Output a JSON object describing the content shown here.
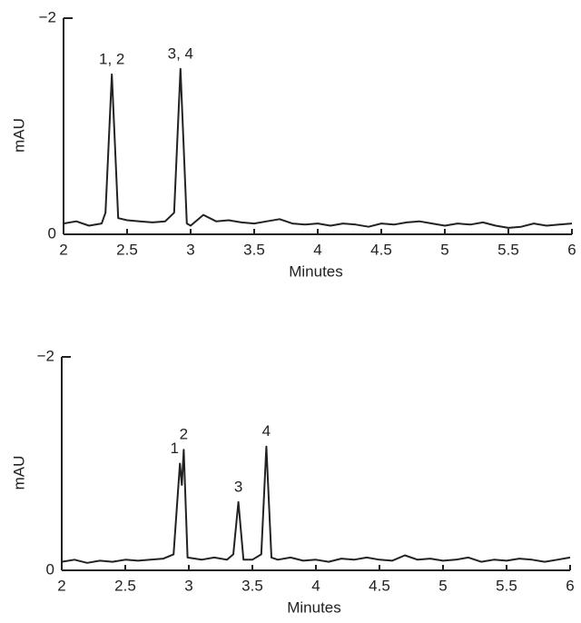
{
  "chart_data": [
    {
      "type": "line",
      "x_label": "Minutes",
      "y_label": "mAU",
      "x": [
        2.0,
        2.1,
        2.2,
        2.3,
        2.33,
        2.38,
        2.43,
        2.5,
        2.6,
        2.7,
        2.8,
        2.87,
        2.92,
        2.97,
        3.0,
        3.1,
        3.2,
        3.3,
        3.4,
        3.5,
        3.6,
        3.7,
        3.8,
        3.9,
        4.0,
        4.1,
        4.2,
        4.3,
        4.4,
        4.5,
        4.6,
        4.7,
        4.8,
        4.9,
        5.0,
        5.1,
        5.2,
        5.3,
        5.4,
        5.5,
        5.6,
        5.7,
        5.8,
        5.9,
        6.0
      ],
      "values": [
        -0.1,
        -0.12,
        -0.08,
        -0.1,
        -0.2,
        -1.48,
        -0.15,
        -0.13,
        -0.12,
        -0.11,
        -0.12,
        -0.2,
        -1.53,
        -0.1,
        -0.08,
        -0.18,
        -0.12,
        -0.13,
        -0.11,
        -0.1,
        -0.12,
        -0.14,
        -0.1,
        -0.09,
        -0.1,
        -0.08,
        -0.1,
        -0.09,
        -0.07,
        -0.1,
        -0.09,
        -0.11,
        -0.12,
        -0.1,
        -0.08,
        -0.1,
        -0.09,
        -0.11,
        -0.08,
        -0.06,
        -0.07,
        -0.1,
        -0.08,
        -0.09,
        -0.1
      ],
      "color": "#222222",
      "xlim": [
        2,
        6
      ],
      "xticks": [
        2,
        2.5,
        3,
        3.5,
        4,
        4.5,
        5,
        5.5,
        6
      ],
      "ylim": [
        0,
        -2
      ],
      "yticks": [
        0,
        {
          "value": -2,
          "label": "−2"
        }
      ],
      "annotations": [
        {
          "text": "1, 2",
          "x": 2.38
        },
        {
          "text": "3, 4",
          "x": 2.92
        }
      ]
    },
    {
      "type": "line",
      "x_label": "Minutes",
      "y_label": "mAU",
      "x": [
        2.0,
        2.1,
        2.2,
        2.3,
        2.4,
        2.5,
        2.6,
        2.7,
        2.8,
        2.88,
        2.93,
        2.945,
        2.96,
        2.99,
        3.1,
        3.2,
        3.3,
        3.35,
        3.39,
        3.43,
        3.5,
        3.57,
        3.61,
        3.65,
        3.7,
        3.8,
        3.9,
        4.0,
        4.1,
        4.2,
        4.3,
        4.4,
        4.5,
        4.6,
        4.7,
        4.8,
        4.9,
        5.0,
        5.1,
        5.2,
        5.3,
        5.4,
        5.5,
        5.6,
        5.7,
        5.8,
        5.9,
        6.0
      ],
      "values": [
        -0.08,
        -0.1,
        -0.07,
        -0.09,
        -0.08,
        -0.1,
        -0.09,
        -0.1,
        -0.11,
        -0.15,
        -1.0,
        -0.8,
        -1.13,
        -0.12,
        -0.1,
        -0.12,
        -0.1,
        -0.15,
        -0.64,
        -0.1,
        -0.1,
        -0.15,
        -1.16,
        -0.12,
        -0.1,
        -0.12,
        -0.09,
        -0.1,
        -0.08,
        -0.11,
        -0.1,
        -0.12,
        -0.1,
        -0.09,
        -0.14,
        -0.1,
        -0.11,
        -0.09,
        -0.1,
        -0.12,
        -0.08,
        -0.1,
        -0.09,
        -0.11,
        -0.1,
        -0.08,
        -0.1,
        -0.12
      ],
      "color": "#222222",
      "xlim": [
        2,
        6
      ],
      "xticks": [
        2,
        2.5,
        3,
        3.5,
        4,
        4.5,
        5,
        5.5,
        6
      ],
      "ylim": [
        0,
        -2
      ],
      "yticks": [
        0,
        {
          "value": -2,
          "label": "−2"
        }
      ],
      "annotations": [
        {
          "text": "1",
          "x": 2.93
        },
        {
          "text": "2",
          "x": 2.96
        },
        {
          "text": "3",
          "x": 3.39
        },
        {
          "text": "4",
          "x": 3.61
        }
      ]
    }
  ]
}
